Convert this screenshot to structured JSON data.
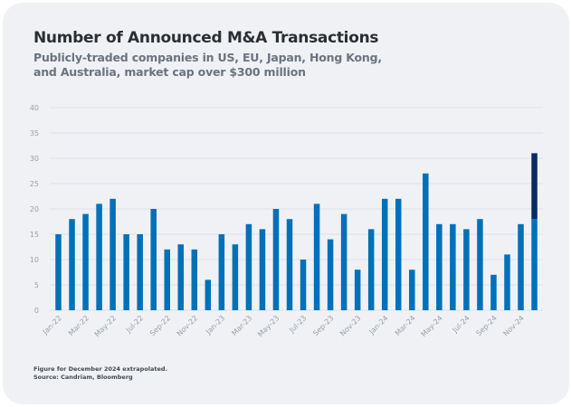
{
  "chart_data": {
    "type": "bar",
    "title": "Number of Announced M&A Transactions",
    "subtitle": "Publicly-traded companies in US, EU, Japan, Hong Kong, and Australia, market cap over $300 million",
    "categories": [
      "Jan-22",
      "Feb-22",
      "Mar-22",
      "Apr-22",
      "May-22",
      "Jun-22",
      "Jul-22",
      "Aug-22",
      "Sep-22",
      "Oct-22",
      "Nov-22",
      "Dec-22",
      "Jan-23",
      "Feb-23",
      "Mar-23",
      "Apr-23",
      "May-23",
      "Jun-23",
      "Jul-23",
      "Aug-23",
      "Sep-23",
      "Oct-23",
      "Nov-23",
      "Dec-23",
      "Jan-24",
      "Feb-24",
      "Mar-24",
      "Apr-24",
      "May-24",
      "Jun-24",
      "Jul-24",
      "Aug-24",
      "Sep-24",
      "Oct-24",
      "Nov-24",
      "Dec-24"
    ],
    "tick_labels": [
      "Jan-22",
      "Mar-22",
      "May-22",
      "Jul-22",
      "Sep-22",
      "Nov-22",
      "Jan-23",
      "Mar-23",
      "May-23",
      "Jul-23",
      "Sep-23",
      "Nov-23",
      "Jan-24",
      "Mar-24",
      "May-24",
      "Jul-24",
      "Sep-24",
      "Nov-24"
    ],
    "values": [
      15,
      18,
      19,
      21,
      22,
      15,
      15,
      20,
      12,
      13,
      12,
      6,
      15,
      13,
      17,
      16,
      20,
      18,
      10,
      21,
      14,
      19,
      8,
      16,
      22,
      22,
      8,
      27,
      17,
      17,
      16,
      18,
      7,
      11,
      17,
      18
    ],
    "extrapolated_extra": {
      "category": "Dec-24",
      "value": 13
    },
    "yticks": [
      0,
      5,
      10,
      15,
      20,
      25,
      30,
      35,
      40
    ],
    "ylim": [
      0,
      40
    ],
    "grid": true,
    "colors": {
      "bar": "#0070b8",
      "extrapolated": "#0a2a66"
    },
    "footnote": "Figure for December 2024 extrapolated.",
    "source": "Source: Candriam, Bloomberg"
  }
}
